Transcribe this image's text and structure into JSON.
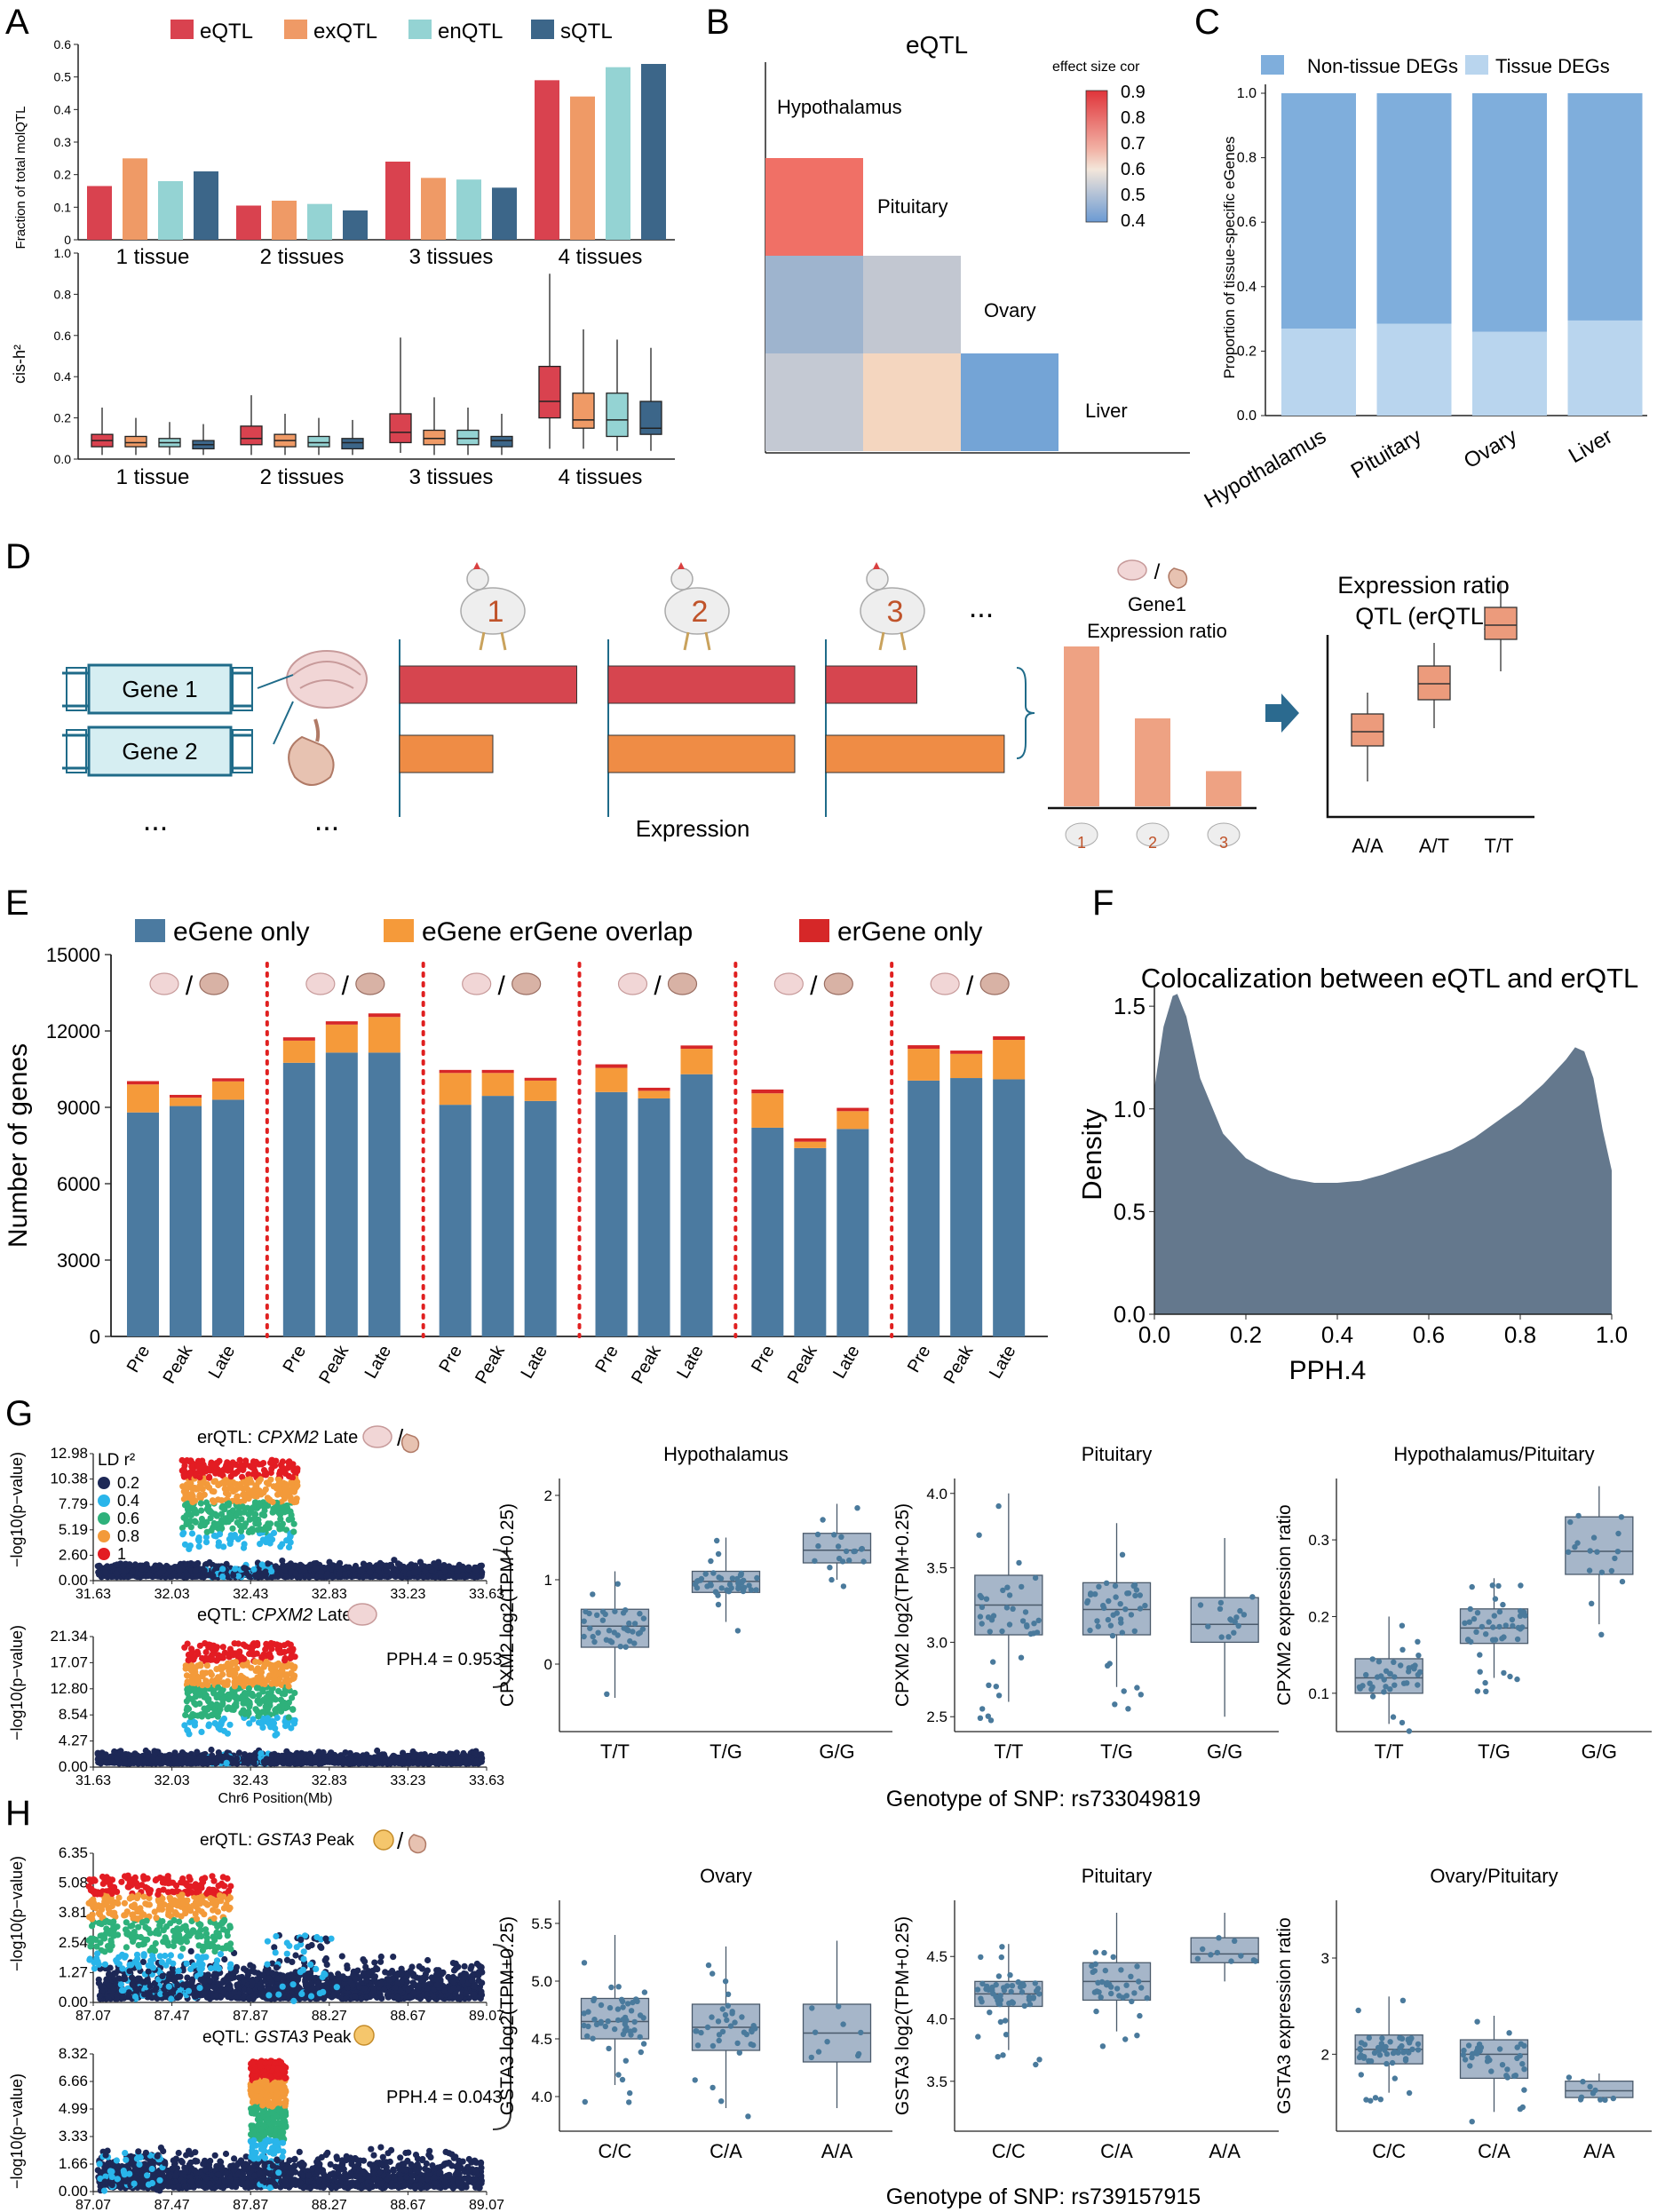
{
  "colors": {
    "eqtl": "#d9424f",
    "exqtl": "#ef9a66",
    "enqtl": "#94d3d3",
    "sqtl": "#3c6689",
    "eGeneOnly": "#4b7aa0",
    "overlap": "#f59a3a",
    "erOnly": "#d62728",
    "nonTissue": "#7faedc",
    "tissue": "#b9d5ee",
    "density": "#64788d",
    "boxFill": "#a6b6c9",
    "boxStroke": "#4a5a6b",
    "dot": "#4a7a9c",
    "ld02": "#1d2856",
    "ld04": "#29b5ea",
    "ld06": "#2eb17b",
    "ld08": "#f39a3a",
    "ld1": "#e31c23",
    "gene": "#d6eef2",
    "geneStroke": "#1f6b89",
    "barRed": "#d6454f",
    "barOrange": "#ef8c45",
    "ratioBar": "#eea283",
    "arrow": "#2b6a8f",
    "erqtlBox": "#ec9b7c"
  },
  "panelLetters": [
    "A",
    "B",
    "C",
    "D",
    "E",
    "F",
    "G",
    "H"
  ],
  "panelA": {
    "legend": [
      "eQTL",
      "exQTL",
      "enQTL",
      "sQTL"
    ],
    "topYlabel": "Fraction of total molQTL",
    "bottomYlabel": "cis-h²",
    "topTicks": [
      "0",
      "0.1",
      "0.2",
      "0.3",
      "0.4",
      "0.5",
      "0.6"
    ],
    "bottomTicks": [
      "0.0",
      "0.2",
      "0.4",
      "0.6",
      "0.8",
      "1.0"
    ],
    "groups": [
      "1 tissue",
      "2 tissues",
      "3 tissues",
      "4 tissues"
    ]
  },
  "panelB": {
    "title": "eQTL",
    "legendTitle": "effect size cor",
    "legendTicks": [
      "0.9",
      "0.8",
      "0.7",
      "0.6",
      "0.5",
      "0.4"
    ],
    "tissues": [
      "Hypothalamus",
      "Pituitary",
      "Ovary",
      "Liver"
    ]
  },
  "panelC": {
    "legend": [
      "Non-tissue DEGs",
      "Tissue DEGs"
    ],
    "ylabel": "Proportion of tissue-specific eGenes",
    "ticks": [
      "0.0",
      "0.2",
      "0.4",
      "0.6",
      "0.8",
      "1.0"
    ],
    "categories": [
      "Hypothalamus",
      "Pituitary",
      "Ovary",
      "Liver"
    ]
  },
  "panelD": {
    "genes": [
      "Gene 1",
      "Gene 2"
    ],
    "ellipsis": "...",
    "individuals": [
      "1",
      "2",
      "3"
    ],
    "expressionLabel": "Expression",
    "ratioTitle": "Gene1\nExpression ratio",
    "erqtlTitle1": "Expression ratio",
    "erqtlTitle2": "QTL (erQTL)",
    "genotypes": [
      "A/A",
      "A/T",
      "T/T"
    ],
    "slash": "/"
  },
  "panelE": {
    "legend": [
      "eGene only",
      "eGene erGene overlap",
      "erGene only"
    ],
    "ylabel": "Number of genes",
    "ticks": [
      "0",
      "3000",
      "6000",
      "9000",
      "12000",
      "15000"
    ],
    "stages": [
      "Pre",
      "Peak",
      "Late"
    ]
  },
  "panelF": {
    "title": "Colocalization between eQTL and erQTL",
    "ylabel": "Density",
    "xlabel": "PPH.4",
    "yticks": [
      "0.0",
      "0.5",
      "1.0",
      "1.5"
    ],
    "xticks": [
      "0.0",
      "0.2",
      "0.4",
      "0.6",
      "0.8",
      "1.0"
    ]
  },
  "panelG": {
    "topTitle": "erQTL: CPXM2 Late",
    "bottomTitle": "eQTL: CPXM2 Late",
    "ylab": "−log10(p−value)",
    "ldTitle": "LD r²",
    "ldLevels": [
      "0.2",
      "0.4",
      "0.6",
      "0.8",
      "1"
    ],
    "topTicks": [
      "12.98",
      "10.38",
      "7.79",
      "5.19",
      "2.60",
      "0.00"
    ],
    "bottomTicks": [
      "21.34",
      "17.07",
      "12.80",
      "8.54",
      "4.27",
      "0.00"
    ],
    "xticks": [
      "31.63",
      "32.03",
      "32.43",
      "32.83",
      "33.23",
      "33.63"
    ],
    "xlabel": "Chr6 Position(Mb)",
    "pph": "PPH.4 = 0.953",
    "boxTitles": [
      "Hypothalamus",
      "Pituitary",
      "Hypothalamus/Pituitary"
    ],
    "boxYlabels": [
      "CPXM2 log2(TPM+0.25)",
      "CPXM2 log2(TPM+0.25)",
      "CPXM2 expression ratio"
    ],
    "box1Ticks": [
      "0",
      "1",
      "2"
    ],
    "box2Ticks": [
      "2.5",
      "3.0",
      "3.5",
      "4.0"
    ],
    "box3Ticks": [
      "0.1",
      "0.2",
      "0.3"
    ],
    "genotypes": [
      "T/T",
      "T/G",
      "G/G"
    ],
    "snpLabel": "Genotype of SNP: rs733049819"
  },
  "panelH": {
    "topTitle": "erQTL: GSTA3 Peak",
    "bottomTitle": "eQTL: GSTA3 Peak",
    "ylab": "−log10(p−value)",
    "topTicks": [
      "6.35",
      "5.08",
      "3.81",
      "2.54",
      "1.27",
      "0.00"
    ],
    "bottomTicks": [
      "8.32",
      "6.66",
      "4.99",
      "3.33",
      "1.66",
      "0.00"
    ],
    "xticks": [
      "87.07",
      "87.47",
      "87.87",
      "88.27",
      "88.67",
      "89.07"
    ],
    "pph": "PPH.4 = 0.043",
    "boxTitles": [
      "Ovary",
      "Pituitary",
      "Ovary/Pituitary"
    ],
    "boxYlabels": [
      "GSTA3 log2(TPM+0.25)",
      "GSTA3 log2(TPM+0.25)",
      "GSTA3 expression ratio"
    ],
    "box1Ticks": [
      "4.0",
      "4.5",
      "5.0",
      "5.5"
    ],
    "box2Ticks": [
      "3.5",
      "4.0",
      "4.5"
    ],
    "box3Ticks": [
      "2",
      "3"
    ],
    "genotypes": [
      "C/C",
      "C/A",
      "A/A"
    ],
    "snpLabel": "Genotype of SNP: rs739157915"
  },
  "chart_data": [
    {
      "type": "bar",
      "id": "A-top",
      "ylabel": "Fraction of total molQTL",
      "ylim": [
        0,
        0.6
      ],
      "categories": [
        "1 tissue",
        "2 tissues",
        "3 tissues",
        "4 tissues"
      ],
      "series": [
        {
          "name": "eQTL",
          "values": [
            0.165,
            0.105,
            0.24,
            0.49
          ]
        },
        {
          "name": "exQTL",
          "values": [
            0.25,
            0.12,
            0.19,
            0.44
          ]
        },
        {
          "name": "enQTL",
          "values": [
            0.18,
            0.11,
            0.185,
            0.53
          ]
        },
        {
          "name": "sQTL",
          "values": [
            0.21,
            0.09,
            0.16,
            0.54
          ]
        }
      ]
    },
    {
      "type": "box",
      "id": "A-bottom",
      "ylabel": "cis-h²",
      "ylim": [
        0,
        1.0
      ],
      "categories": [
        "1 tissue",
        "2 tissues",
        "3 tissues",
        "4 tissues"
      ],
      "series": [
        "eQTL",
        "exQTL",
        "enQTL",
        "sQTL"
      ],
      "boxes": [
        [
          [
            0.02,
            0.06,
            0.09,
            0.12,
            0.25
          ],
          [
            0.02,
            0.06,
            0.08,
            0.11,
            0.2
          ],
          [
            0.02,
            0.06,
            0.08,
            0.1,
            0.18
          ],
          [
            0.02,
            0.05,
            0.07,
            0.09,
            0.17
          ]
        ],
        [
          [
            0.02,
            0.07,
            0.1,
            0.16,
            0.31
          ],
          [
            0.02,
            0.06,
            0.09,
            0.12,
            0.22
          ],
          [
            0.02,
            0.06,
            0.08,
            0.11,
            0.2
          ],
          [
            0.02,
            0.05,
            0.08,
            0.1,
            0.19
          ]
        ],
        [
          [
            0.03,
            0.08,
            0.13,
            0.22,
            0.59
          ],
          [
            0.02,
            0.07,
            0.1,
            0.14,
            0.3
          ],
          [
            0.02,
            0.07,
            0.1,
            0.14,
            0.25
          ],
          [
            0.02,
            0.06,
            0.09,
            0.11,
            0.22
          ]
        ],
        [
          [
            0.05,
            0.2,
            0.28,
            0.45,
            0.9
          ],
          [
            0.05,
            0.15,
            0.19,
            0.32,
            0.63
          ],
          [
            0.04,
            0.11,
            0.19,
            0.32,
            0.58
          ],
          [
            0.04,
            0.12,
            0.15,
            0.28,
            0.54
          ]
        ]
      ]
    },
    {
      "type": "heatmap",
      "id": "B",
      "title": "eQTL",
      "legendTitle": "effect size cor",
      "range": [
        0.4,
        0.9
      ],
      "rows": [
        "Pituitary",
        "Ovary",
        "Liver"
      ],
      "cols": [
        "Hypothalamus",
        "Pituitary",
        "Ovary"
      ],
      "values": [
        [
          0.82,
          null,
          null
        ],
        [
          0.48,
          0.55,
          null
        ],
        [
          0.53,
          0.62,
          0.4
        ]
      ]
    },
    {
      "type": "bar",
      "id": "C",
      "stacked": true,
      "ylabel": "Proportion of tissue-specific eGenes",
      "ylim": [
        0,
        1.0
      ],
      "categories": [
        "Hypothalamus",
        "Pituitary",
        "Ovary",
        "Liver"
      ],
      "series": [
        {
          "name": "Tissue DEGs",
          "values": [
            0.27,
            0.285,
            0.26,
            0.295
          ]
        },
        {
          "name": "Non-tissue DEGs",
          "values": [
            0.73,
            0.715,
            0.74,
            0.705
          ]
        }
      ]
    },
    {
      "type": "bar",
      "id": "D-schematic",
      "stacked": false,
      "individuals": [
        "1",
        "2",
        "3"
      ],
      "gene1": [
        0.95,
        1.0,
        0.5
      ],
      "gene2": [
        0.5,
        1.0,
        0.98
      ],
      "ratio": [
        1.0,
        0.55,
        0.22
      ],
      "erqtlBoxes": [
        [
          0.1,
          0.3,
          0.38,
          0.48,
          0.6
        ],
        [
          0.4,
          0.56,
          0.65,
          0.75,
          0.88
        ],
        [
          0.72,
          0.9,
          0.98,
          1.08,
          1.22
        ]
      ]
    },
    {
      "type": "bar",
      "id": "E",
      "stacked": true,
      "ylabel": "Number of genes",
      "ylim": [
        0,
        15000
      ],
      "groups": [
        {
          "pair": "hypothalamus/liver",
          "stages": [
            "Pre",
            "Peak",
            "Late"
          ],
          "eGeneOnly": [
            8800,
            9050,
            9300
          ],
          "overlap": [
            1100,
            330,
            720
          ],
          "erOnly": [
            60,
            40,
            50
          ]
        },
        {
          "pair": "hypothalamus/pituitary",
          "stages": [
            "Pre",
            "Peak",
            "Late"
          ],
          "eGeneOnly": [
            10750,
            11150,
            11150
          ],
          "overlap": [
            870,
            1100,
            1400
          ],
          "erOnly": [
            60,
            60,
            70
          ]
        },
        {
          "pair": "hypothalamus/ovary",
          "stages": [
            "Pre",
            "Peak",
            "Late"
          ],
          "eGeneOnly": [
            9100,
            9450,
            9250
          ],
          "overlap": [
            1250,
            900,
            800
          ],
          "erOnly": [
            50,
            50,
            40
          ]
        },
        {
          "pair": "liver/pituitary",
          "stages": [
            "Pre",
            "Peak",
            "Late"
          ],
          "eGeneOnly": [
            9600,
            9350,
            10300
          ],
          "overlap": [
            950,
            300,
            1000
          ],
          "erOnly": [
            70,
            50,
            60
          ]
        },
        {
          "pair": "liver/ovary",
          "stages": [
            "Pre",
            "Peak",
            "Late"
          ],
          "eGeneOnly": [
            8200,
            7400,
            8150
          ],
          "overlap": [
            1350,
            250,
            700
          ],
          "erOnly": [
            80,
            60,
            60
          ]
        },
        {
          "pair": "pituitary/ovary",
          "stages": [
            "Pre",
            "Peak",
            "Late"
          ],
          "eGeneOnly": [
            10050,
            10150,
            10100
          ],
          "overlap": [
            1250,
            950,
            1550
          ],
          "erOnly": [
            70,
            60,
            70
          ]
        }
      ]
    },
    {
      "type": "area",
      "id": "F",
      "title": "Colocalization between eQTL and erQTL",
      "xlabel": "PPH.4",
      "ylabel": "Density",
      "xlim": [
        0,
        1.0
      ],
      "ylim": [
        0,
        1.6
      ],
      "x": [
        0.0,
        0.02,
        0.04,
        0.05,
        0.07,
        0.1,
        0.15,
        0.2,
        0.25,
        0.3,
        0.35,
        0.4,
        0.45,
        0.5,
        0.55,
        0.6,
        0.65,
        0.7,
        0.75,
        0.8,
        0.85,
        0.9,
        0.92,
        0.94,
        0.96,
        0.98,
        1.0
      ],
      "y": [
        1.1,
        1.4,
        1.55,
        1.56,
        1.45,
        1.15,
        0.88,
        0.76,
        0.7,
        0.66,
        0.64,
        0.64,
        0.65,
        0.68,
        0.72,
        0.76,
        0.8,
        0.86,
        0.94,
        1.02,
        1.12,
        1.24,
        1.3,
        1.28,
        1.15,
        0.9,
        0.7
      ]
    },
    {
      "type": "scatter",
      "id": "G-locus",
      "xlabel": "Chr6 Position(Mb)",
      "xlim": [
        31.63,
        33.63
      ],
      "top": {
        "title": "erQTL: CPXM2 Late",
        "ylim": [
          0,
          12.98
        ],
        "peak": 12.5
      },
      "bottom": {
        "title": "eQTL: CPXM2 Late",
        "ylim": [
          0,
          21.34
        ],
        "peak": 20.5
      },
      "pph4": 0.953
    },
    {
      "type": "box",
      "id": "G-boxes",
      "genotypes": [
        "T/T",
        "T/G",
        "G/G"
      ],
      "panels": [
        {
          "title": "Hypothalamus",
          "ylim": [
            -0.8,
            2.2
          ],
          "boxes": [
            [
              -0.4,
              0.2,
              0.45,
              0.65,
              1.1
            ],
            [
              0.5,
              0.85,
              0.98,
              1.1,
              1.5
            ],
            [
              1.0,
              1.2,
              1.35,
              1.55,
              1.9
            ]
          ]
        },
        {
          "title": "Pituitary",
          "ylim": [
            2.4,
            4.1
          ],
          "boxes": [
            [
              2.6,
              3.05,
              3.25,
              3.45,
              4.0
            ],
            [
              2.7,
              3.05,
              3.22,
              3.4,
              3.8
            ],
            [
              2.5,
              3.0,
              3.12,
              3.3,
              3.7
            ]
          ]
        },
        {
          "title": "Hypothalamus/Pituitary",
          "ylim": [
            0.05,
            0.38
          ],
          "boxes": [
            [
              0.06,
              0.1,
              0.12,
              0.145,
              0.2
            ],
            [
              0.12,
              0.165,
              0.185,
              0.21,
              0.25
            ],
            [
              0.19,
              0.255,
              0.285,
              0.33,
              0.37
            ]
          ]
        }
      ]
    },
    {
      "type": "scatter",
      "id": "H-locus",
      "xlim": [
        87.07,
        89.07
      ],
      "top": {
        "title": "erQTL: GSTA3 Peak",
        "ylim": [
          0,
          6.35
        ],
        "peak": 6.1
      },
      "bottom": {
        "title": "eQTL: GSTA3 Peak",
        "ylim": [
          0,
          8.32
        ],
        "peak": 8.1
      },
      "pph4": 0.043
    },
    {
      "type": "box",
      "id": "H-boxes",
      "genotypes": [
        "C/C",
        "C/A",
        "A/A"
      ],
      "panels": [
        {
          "title": "Ovary",
          "ylim": [
            3.7,
            5.7
          ],
          "boxes": [
            [
              4.1,
              4.5,
              4.65,
              4.85,
              5.4
            ],
            [
              3.9,
              4.4,
              4.6,
              4.8,
              5.3
            ],
            [
              3.9,
              4.3,
              4.55,
              4.8,
              5.35
            ]
          ]
        },
        {
          "title": "Pituitary",
          "ylim": [
            3.1,
            4.95
          ],
          "boxes": [
            [
              3.75,
              4.1,
              4.2,
              4.3,
              4.6
            ],
            [
              3.9,
              4.15,
              4.3,
              4.45,
              4.85
            ],
            [
              4.3,
              4.45,
              4.52,
              4.65,
              4.85
            ]
          ]
        },
        {
          "title": "Ovary/Pituitary",
          "ylim": [
            1.2,
            3.6
          ],
          "boxes": [
            [
              1.6,
              1.9,
              2.05,
              2.2,
              2.6
            ],
            [
              1.4,
              1.75,
              2.0,
              2.15,
              2.4
            ],
            [
              1.5,
              1.55,
              1.62,
              1.72,
              1.8
            ]
          ]
        }
      ]
    }
  ]
}
